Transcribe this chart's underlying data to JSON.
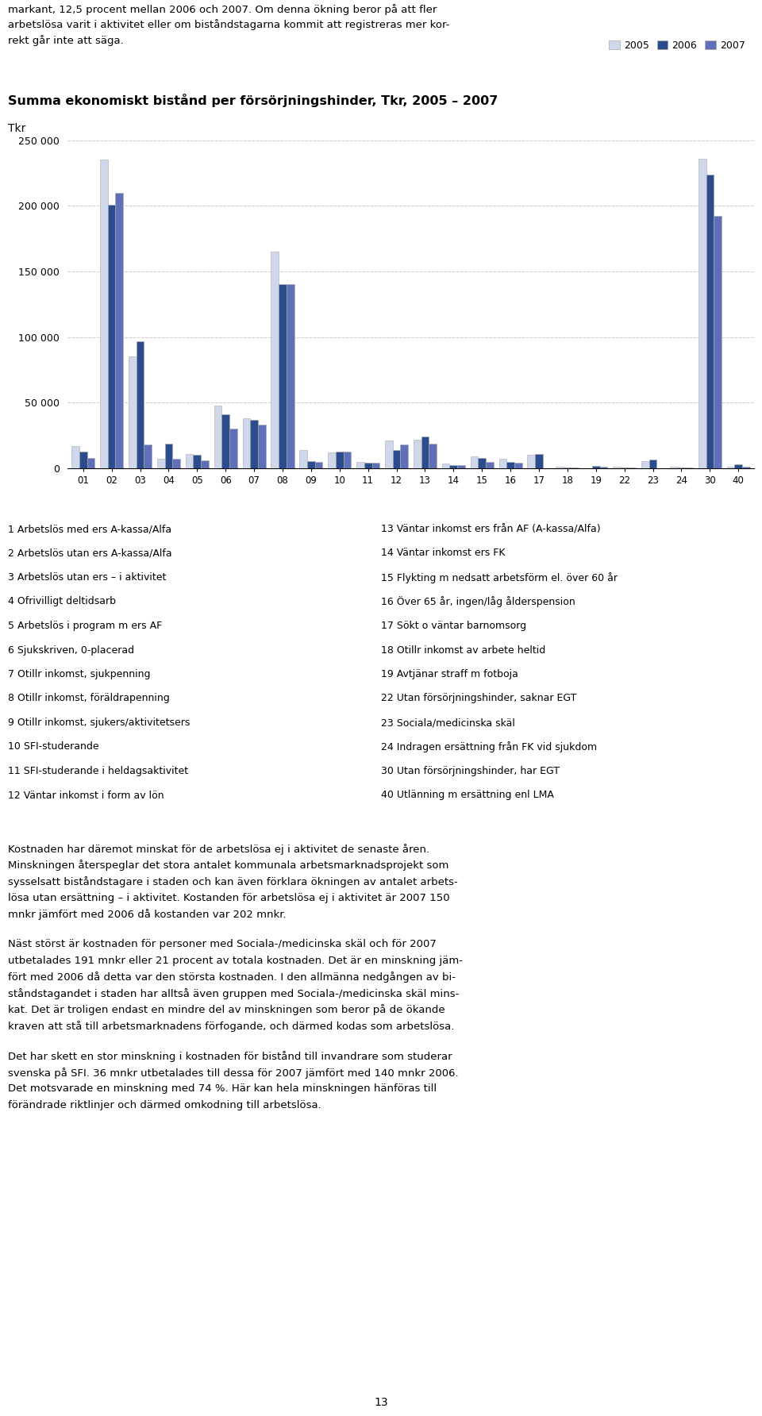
{
  "title": "Summa ekonomiskt bistånd per försörjningshinder, Tkr, 2005 – 2007",
  "ylabel": "Tkr",
  "categories": [
    "01",
    "02",
    "03",
    "04",
    "05",
    "06",
    "07",
    "08",
    "09",
    "10",
    "11",
    "12",
    "13",
    "14",
    "15",
    "16",
    "17",
    "18",
    "19",
    "22",
    "23",
    "24",
    "30",
    "40"
  ],
  "values_2005": [
    17000,
    235000,
    85000,
    7000,
    11000,
    48000,
    38000,
    165000,
    14000,
    12000,
    5000,
    21000,
    22000,
    3500,
    9000,
    7000,
    10000,
    1000,
    100,
    1000,
    5500,
    1000,
    236000,
    1000
  ],
  "values_2006": [
    13000,
    201000,
    97000,
    19000,
    10000,
    41000,
    37000,
    140000,
    5500,
    13000,
    4000,
    14000,
    24000,
    2500,
    8000,
    5000,
    11000,
    500,
    2000,
    500,
    6500,
    500,
    224000,
    3000
  ],
  "values_2007": [
    8000,
    210000,
    18000,
    7000,
    6000,
    30000,
    33000,
    140000,
    5000,
    13000,
    4000,
    18000,
    19000,
    2500,
    5000,
    4000,
    100,
    500,
    1000,
    500,
    100,
    500,
    192000,
    1000
  ],
  "color_2005": "#cfd8ea",
  "color_2006": "#2b4d8e",
  "color_2007": "#6070b8",
  "ytick_labels": [
    "0",
    "50 000",
    "100 000",
    "150 000",
    "200 000",
    "250 000"
  ],
  "legend_labels": [
    "2005",
    "2006",
    "2007"
  ],
  "legend_items_left": [
    "1 Arbetslös med ers A-kassa/Alfa",
    "2 Arbetslös utan ers A-kassa/Alfa",
    "3 Arbetslös utan ers – i aktivitet",
    "4 Ofrivilligt deltidsarb",
    "5 Arbetslös i program m ers AF",
    "6 Sjukskriven, 0-placerad",
    "7 Otillr inkomst, sjukpenning",
    "8 Otillr inkomst, föräldrapenning",
    "9 Otillr inkomst, sjukers/aktivitetsers",
    "10 SFI-studerande",
    "11 SFI-studerande i heldagsaktivitet",
    "12 Väntar inkomst i form av lön"
  ],
  "legend_items_right": [
    "13 Väntar inkomst ers från AF (A-kassa/Alfa)",
    "14 Väntar inkomst ers FK",
    "15 Flykting m nedsatt arbetsförm el. över 60 år",
    "16 Över 65 år, ingen/låg ålderspension",
    "17 Sökt o väntar barnomsorg",
    "18 Otillr inkomst av arbete heltid",
    "19 Avtjänar straff m fotboja",
    "22 Utan försörjningshinder, saknar EGT",
    "23 Sociala/medicinska skäl",
    "24 Indragen ersättning från FK vid sjukdom",
    "30 Utan försörjningshinder, har EGT",
    "40 Utlänning m ersättning enl LMA"
  ],
  "intro_text": "markant, 12,5 procent mellan 2006 och 2007. Om denna ökning beror på att fler\narbetslösa varit i aktivitet eller om biståndstagarna kommit att registreras mer kor-\nrekt går inte att säga.",
  "para1": "Kostnaden har däremot minskat för de arbetslösa ej i aktivitet de senaste åren.\nMinskningen återspeglar det stora antalet kommunala arbetsmarknadsprojekt som\nsysselsatt biståndstagare i staden och kan även förklara ökningen av antalet arbets-\nlösa utan ersättning – i aktivitet. Kostanden för arbetslösa ej i aktivitet är 2007 150\nmnkr jämfört med 2006 då kostanden var 202 mnkr.",
  "para2": "Näst störst är kostnaden för personer med Sociala-/medicinska skäl och för 2007\nutbetalades 191 mnkr eller 21 procent av totala kostnaden. Det är en minskning jäm-\nfört med 2006 då detta var den största kostnaden. I den allmänna nedgången av bi-\nståndstagandet i staden har alltså även gruppen med Sociala-/medicinska skäl mins-\nkat. Det är troligen endast en mindre del av minskningen som beror på de ökande\nkraven att stå till arbetsmarknadens förfogande, och därmed kodas som arbetslösa.",
  "para3": "Det har skett en stor minskning i kostnaden för bistånd till invandrare som studerar\nsvenska på SFI. 36 mnkr utbetalades till dessa för 2007 jämfört med 140 mnkr 2006.\nDet motsvarade en minskning med 74 %. Här kan hela minskningen hänföras till\nförändrade riktlinjer och därmed omkodning till arbetslösa.",
  "page_number": "13"
}
